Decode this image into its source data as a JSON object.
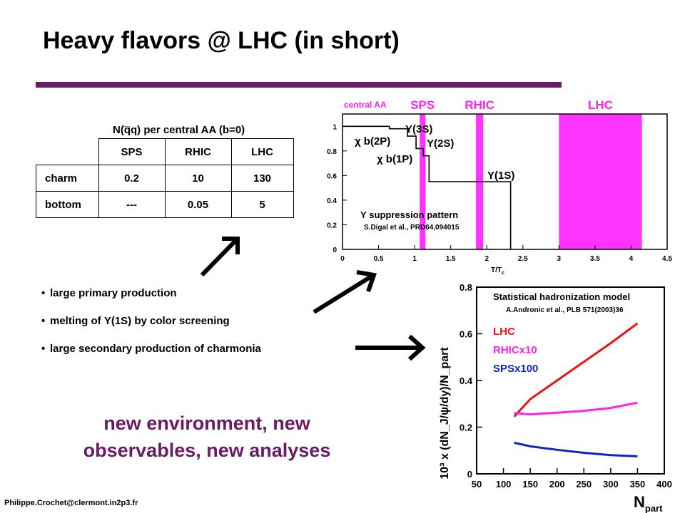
{
  "slide": {
    "title": "Heavy flavors @ LHC (in short)",
    "footer": "Philippe.Crochet@clermont.in2p3.fr",
    "tagline_line1": "new environment, new",
    "tagline_line2": "observables, new analyses",
    "bullets": [
      "large primary production",
      "melting of Υ(1S) by color screening",
      "large secondary production of charmonia"
    ],
    "accent_color": "#6b1a66"
  },
  "table": {
    "title": "N(q̅q) per central AA (b=0)",
    "columns": [
      "SPS",
      "RHIC",
      "LHC"
    ],
    "rows": [
      {
        "label": "charm",
        "values": [
          "0.2",
          "10",
          "130"
        ]
      },
      {
        "label": "bottom",
        "values": [
          "---",
          "0.05",
          "5"
        ]
      }
    ]
  },
  "chart_data": [
    {
      "type": "line",
      "xlabel": "T/T",
      "xlabel_sub": "c",
      "xlim": [
        0,
        4.5
      ],
      "ylim": [
        0,
        1.1
      ],
      "xticks": [
        "0",
        "0.5",
        "1",
        "1.5",
        "2",
        "2.5",
        "3",
        "3.5",
        "4",
        "4.5"
      ],
      "yticks": [
        "0",
        "0.2",
        "0.4",
        "0.6",
        "0.8",
        "1"
      ],
      "header_label": "central AA",
      "bands": [
        {
          "name": "SPS",
          "range": [
            1.07,
            1.15
          ],
          "color": "#ff33ff"
        },
        {
          "name": "RHIC",
          "range": [
            1.85,
            1.95
          ],
          "color": "#ff33ff"
        },
        {
          "name": "LHC",
          "range": [
            3.0,
            4.15
          ],
          "color": "#ff33ff"
        }
      ],
      "steps": [
        [
          0,
          1.0
        ],
        [
          0.65,
          1.0
        ],
        [
          0.65,
          0.98
        ],
        [
          0.9,
          0.98
        ],
        [
          0.9,
          0.92
        ],
        [
          1.02,
          0.92
        ],
        [
          1.02,
          0.82
        ],
        [
          1.12,
          0.82
        ],
        [
          1.12,
          0.76
        ],
        [
          1.2,
          0.76
        ],
        [
          1.2,
          0.55
        ],
        [
          2.33,
          0.55
        ],
        [
          2.33,
          0
        ]
      ],
      "annotations": [
        "Υ(3S)",
        "χ b(2P)",
        "Υ(2S)",
        "χ b(1P)",
        "Υ(1S)"
      ],
      "legend_title": "Υ suppression pattern",
      "reference": "S.Digal et al., PRD64,094015",
      "grid": false
    },
    {
      "type": "line",
      "ylabel": "10³ x (dN_J/ψ/dy)/N_part",
      "xlabel": "N",
      "xlabel_sub": "part",
      "xlim": [
        50,
        400
      ],
      "ylim": [
        0,
        0.8
      ],
      "xticks": [
        "50",
        "100",
        "150",
        "200",
        "250",
        "300",
        "350",
        "400"
      ],
      "yticks": [
        "0",
        "0.2",
        "0.4",
        "0.6",
        "0.8"
      ],
      "model_title": "Statistical hadronization model",
      "reference": "A.Andronic et al., PLB 571(2003)36",
      "grid": false,
      "series": [
        {
          "name": "LHC",
          "color": "#ee1111",
          "x": [
            120,
            150,
            200,
            250,
            300,
            350
          ],
          "y": [
            0.245,
            0.32,
            0.4,
            0.48,
            0.56,
            0.645
          ]
        },
        {
          "name": "RHICx10",
          "color": "#ff22ee",
          "x": [
            120,
            150,
            200,
            250,
            300,
            350
          ],
          "y": [
            0.26,
            0.255,
            0.262,
            0.27,
            0.282,
            0.305
          ]
        },
        {
          "name": "SPSx100",
          "color": "#1122cc",
          "x": [
            120,
            150,
            200,
            250,
            300,
            350
          ],
          "y": [
            0.133,
            0.118,
            0.103,
            0.09,
            0.08,
            0.075
          ]
        }
      ]
    }
  ]
}
